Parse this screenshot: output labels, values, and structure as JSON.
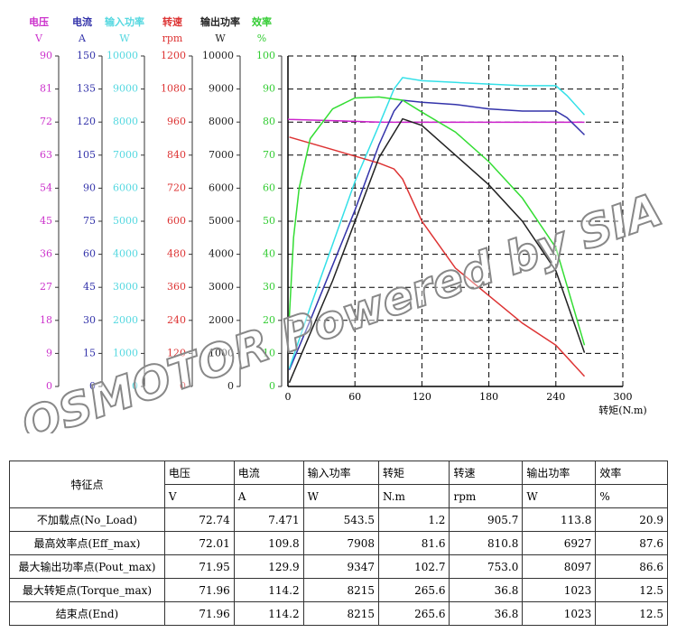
{
  "chart_data": {
    "type": "line",
    "x_label": "转矩(N.m)",
    "xlim": [
      0,
      300
    ],
    "xticks": [
      0,
      60,
      120,
      180,
      240,
      300
    ],
    "grid": true,
    "watermark": "QSMOTOR Powered by SIA",
    "y_axes": [
      {
        "name": "电压",
        "unit": "V",
        "color": "#cc33cc",
        "ylim": [
          0,
          90
        ],
        "yticks": [
          0,
          9,
          18,
          27,
          36,
          45,
          54,
          63,
          72,
          81,
          90
        ]
      },
      {
        "name": "电流",
        "unit": "A",
        "color": "#3333aa",
        "ylim": [
          0,
          150
        ],
        "yticks": [
          0,
          15,
          30,
          45,
          60,
          75,
          90,
          105,
          120,
          135,
          150
        ]
      },
      {
        "name": "输入功率",
        "unit": "W",
        "color": "#55d8e0",
        "ylim": [
          0,
          10000
        ],
        "yticks": [
          0,
          1000,
          2000,
          3000,
          4000,
          5000,
          6000,
          7000,
          8000,
          9000,
          10000
        ]
      },
      {
        "name": "转速",
        "unit": "rpm",
        "color": "#dd3333",
        "ylim": [
          0,
          1200
        ],
        "yticks": [
          0,
          120,
          240,
          360,
          480,
          600,
          720,
          840,
          960,
          1080,
          1200
        ]
      },
      {
        "name": "输出功率",
        "unit": "W",
        "color": "#222222",
        "ylim": [
          0,
          10000
        ],
        "yticks": [
          0,
          1000,
          2000,
          3000,
          4000,
          5000,
          6000,
          7000,
          8000,
          9000,
          10000
        ]
      },
      {
        "name": "效率",
        "unit": "%",
        "color": "#33cc33",
        "ylim": [
          0,
          100
        ],
        "yticks": [
          0,
          10,
          20,
          30,
          40,
          50,
          60,
          70,
          80,
          90,
          100
        ]
      }
    ],
    "series": [
      {
        "axis": 0,
        "color": "#cc22cc",
        "x": [
          0,
          1.2,
          81.6,
          102.7,
          265.6
        ],
        "values": [
          72.8,
          72.74,
          72.01,
          71.95,
          71.96
        ]
      },
      {
        "axis": 1,
        "color": "#3333aa",
        "x": [
          1.2,
          20,
          40,
          60,
          81.6,
          95,
          102.7,
          120,
          150,
          180,
          210,
          240,
          250,
          265.6
        ],
        "values": [
          7.5,
          30,
          55,
          80,
          109.8,
          125,
          129.9,
          129,
          128,
          126,
          125,
          125,
          122,
          114.2
        ]
      },
      {
        "axis": 2,
        "color": "#33e0e8",
        "x": [
          1.2,
          20,
          40,
          60,
          81.6,
          95,
          102.7,
          120,
          150,
          180,
          210,
          240,
          250,
          265.6
        ],
        "values": [
          543.5,
          2400,
          4300,
          6200,
          7908,
          9000,
          9347,
          9250,
          9200,
          9150,
          9100,
          9100,
          8800,
          8215
        ]
      },
      {
        "axis": 3,
        "color": "#dd3333",
        "x": [
          1.2,
          40,
          81.6,
          95,
          102.7,
          120,
          150,
          180,
          210,
          240,
          265.6
        ],
        "values": [
          905.7,
          860,
          810.8,
          790,
          753,
          600,
          430,
          330,
          230,
          150,
          36.8
        ]
      },
      {
        "axis": 4,
        "color": "#222222",
        "x": [
          1.2,
          40,
          81.6,
          102.7,
          120,
          150,
          180,
          210,
          240,
          265.6
        ],
        "values": [
          113.8,
          3200,
          6927,
          8097,
          7900,
          7000,
          6100,
          5000,
          3500,
          1023
        ]
      },
      {
        "axis": 5,
        "color": "#33dd33",
        "x": [
          1.2,
          5,
          10,
          20,
          40,
          60,
          81.6,
          102.7,
          120,
          150,
          180,
          210,
          240,
          265.6
        ],
        "values": [
          20.9,
          45,
          60,
          75,
          84,
          87.3,
          87.6,
          86.6,
          83,
          77,
          68,
          57,
          42,
          12.5
        ]
      }
    ]
  },
  "table": {
    "header": [
      "特征点",
      "电压",
      "电流",
      "输入功率",
      "转矩",
      "转速",
      "输出功率",
      "效率"
    ],
    "units": [
      "V",
      "A",
      "W",
      "N.m",
      "rpm",
      "W",
      "%"
    ],
    "rows": [
      [
        "不加载点(No_Load)",
        "72.74",
        "7.471",
        "543.5",
        "1.2",
        "905.7",
        "113.8",
        "20.9"
      ],
      [
        "最高效率点(Eff_max)",
        "72.01",
        "109.8",
        "7908",
        "81.6",
        "810.8",
        "6927",
        "87.6"
      ],
      [
        "最大输出功率点(Pout_max)",
        "71.95",
        "129.9",
        "9347",
        "102.7",
        "753.0",
        "8097",
        "86.6"
      ],
      [
        "最大转矩点(Torque_max)",
        "71.96",
        "114.2",
        "8215",
        "265.6",
        "36.8",
        "1023",
        "12.5"
      ],
      [
        "结束点(End)",
        "71.96",
        "114.2",
        "8215",
        "265.6",
        "36.8",
        "1023",
        "12.5"
      ]
    ]
  }
}
